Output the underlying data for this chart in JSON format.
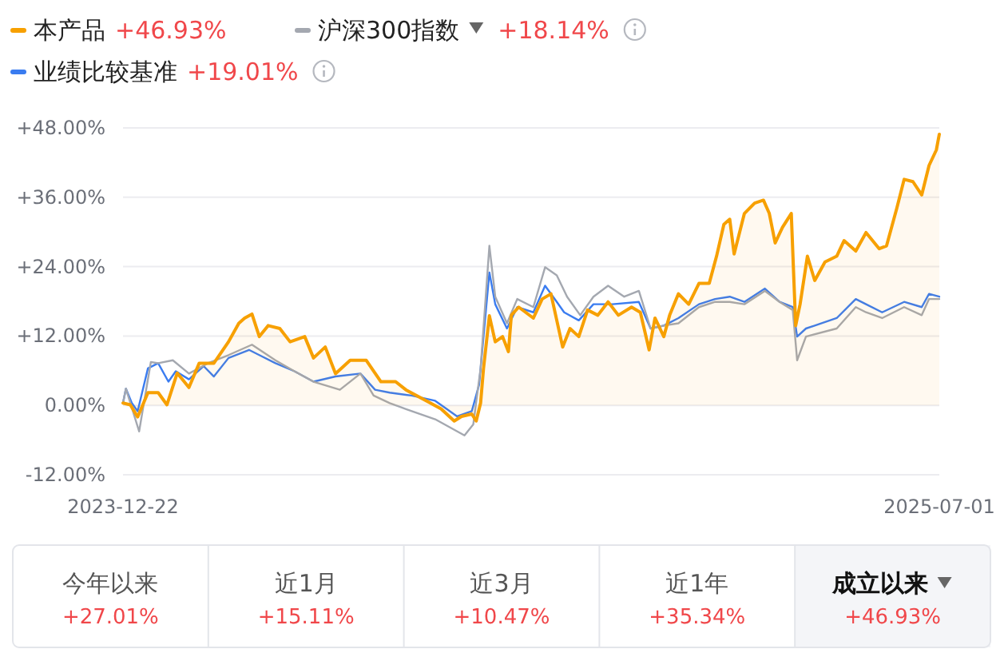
{
  "chart_data": {
    "type": "line",
    "xlim": [
      "2023-12-22",
      "2025-07-01"
    ],
    "xticks": [
      "2023-12-22",
      "2025-07-01"
    ],
    "ylim": [
      -12,
      48
    ],
    "yticks": [
      {
        "value": 48,
        "label": "+48.00%"
      },
      {
        "value": 36,
        "label": "+36.00%"
      },
      {
        "value": 24,
        "label": "+24.00%"
      },
      {
        "value": 12,
        "label": "+12.00%"
      },
      {
        "value": 0,
        "label": "0.00%"
      },
      {
        "value": -12,
        "label": "-12.00%"
      }
    ],
    "grid": "y",
    "legend": "top left",
    "marker": "none",
    "line_style": "solid",
    "annotations": [
      "+46.93%",
      "+18.14%",
      "+19.01%",
      "今年以来",
      "+27.01%",
      "近1月",
      "+15.11%",
      "近3月",
      "+10.47%",
      "近1年",
      "+35.34%",
      "成立以来",
      "+46.93%"
    ],
    "series": [
      {
        "name": "本产品",
        "type": "area",
        "color": "#f7a000",
        "x": [
          "2023-12-22",
          "2023-12-27",
          "2024-01-01",
          "2024-01-08",
          "2024-01-15",
          "2024-01-21",
          "2024-01-28",
          "2024-02-05",
          "2024-02-12",
          "2024-02-22",
          "2024-03-03",
          "2024-03-10",
          "2024-03-14",
          "2024-03-19",
          "2024-03-24",
          "2024-03-30",
          "2024-04-07",
          "2024-04-14",
          "2024-04-24",
          "2024-04-30",
          "2024-05-08",
          "2024-05-15",
          "2024-05-25",
          "2024-06-05",
          "2024-06-15",
          "2024-06-25",
          "2024-07-02",
          "2024-07-16",
          "2024-07-26",
          "2024-08-04",
          "2024-08-09",
          "2024-08-16",
          "2024-08-19",
          "2024-08-22",
          "2024-08-24",
          "2024-08-28",
          "2024-09-01",
          "2024-09-06",
          "2024-09-10",
          "2024-09-12",
          "2024-09-17",
          "2024-09-27",
          "2024-10-03",
          "2024-10-09",
          "2024-10-17",
          "2024-10-22",
          "2024-10-28",
          "2024-11-03",
          "2024-11-10",
          "2024-11-17",
          "2024-11-24",
          "2024-12-03",
          "2024-12-09",
          "2024-12-15",
          "2024-12-19",
          "2024-12-25",
          "2024-12-29",
          "2025-01-04",
          "2025-01-11",
          "2025-01-18",
          "2025-01-25",
          "2025-01-30",
          "2025-02-04",
          "2025-02-08",
          "2025-02-11",
          "2025-02-18",
          "2025-02-25",
          "2025-03-03",
          "2025-03-07",
          "2025-03-11",
          "2025-03-16",
          "2025-03-22",
          "2025-03-25",
          "2025-03-28",
          "2025-04-02",
          "2025-04-07",
          "2025-04-14",
          "2025-04-22",
          "2025-04-27",
          "2025-05-05",
          "2025-05-12",
          "2025-05-21",
          "2025-05-26",
          "2025-06-02",
          "2025-06-07",
          "2025-06-13",
          "2025-06-19",
          "2025-06-24",
          "2025-06-29",
          "2025-07-01"
        ],
        "values": [
          0.4,
          0.1,
          -2.0,
          2.2,
          2.2,
          0.1,
          5.6,
          3.1,
          7.3,
          7.3,
          11.0,
          14.2,
          15.1,
          15.8,
          11.9,
          13.8,
          13.3,
          11.0,
          11.9,
          8.2,
          10.1,
          5.5,
          7.8,
          7.8,
          4.1,
          4.1,
          2.7,
          0.8,
          -0.6,
          -2.7,
          -1.9,
          -1.5,
          -2.7,
          0.4,
          6.4,
          15.5,
          11.0,
          11.9,
          9.3,
          15.6,
          17.0,
          15.1,
          18.4,
          19.3,
          10.1,
          13.3,
          11.9,
          16.5,
          15.6,
          17.9,
          15.6,
          17.0,
          16.1,
          9.6,
          15.1,
          11.9,
          15.6,
          19.3,
          17.5,
          21.1,
          21.1,
          25.8,
          31.3,
          32.2,
          26.2,
          33.2,
          35.0,
          35.5,
          33.2,
          28.1,
          30.8,
          33.2,
          13.8,
          17.5,
          25.8,
          21.6,
          24.8,
          25.8,
          28.5,
          26.7,
          29.9,
          27.1,
          27.6,
          34.1,
          39.1,
          38.7,
          36.4,
          41.5,
          44.2,
          46.9
        ]
      },
      {
        "name": "沪深300指数",
        "color": "#a4a8b0",
        "x": [
          "2023-12-22",
          "2023-12-24",
          "2024-01-02",
          "2024-01-10",
          "2024-01-15",
          "2024-01-25",
          "2024-02-05",
          "2024-02-18",
          "2024-03-03",
          "2024-03-19",
          "2024-04-04",
          "2024-04-17",
          "2024-04-30",
          "2024-05-18",
          "2024-06-01",
          "2024-06-10",
          "2024-06-21",
          "2024-07-06",
          "2024-07-22",
          "2024-08-11",
          "2024-08-17",
          "2024-08-22",
          "2024-08-28",
          "2024-09-01",
          "2024-09-09",
          "2024-09-16",
          "2024-09-27",
          "2024-10-05",
          "2024-10-13",
          "2024-10-20",
          "2024-10-29",
          "2024-11-07",
          "2024-11-17",
          "2024-11-28",
          "2024-12-08",
          "2024-12-16",
          "2024-12-25",
          "2025-01-04",
          "2025-01-18",
          "2025-01-29",
          "2025-02-08",
          "2025-02-18",
          "2025-03-04",
          "2025-03-14",
          "2025-03-23",
          "2025-03-26",
          "2025-04-01",
          "2025-04-22",
          "2025-05-05",
          "2025-05-12",
          "2025-05-23",
          "2025-06-07",
          "2025-06-19",
          "2025-06-24",
          "2025-07-01"
        ],
        "values": [
          0.4,
          2.9,
          -4.5,
          7.5,
          7.3,
          7.8,
          5.5,
          7.3,
          8.7,
          10.5,
          7.8,
          5.9,
          4.1,
          2.7,
          5.5,
          1.7,
          0.4,
          -1.0,
          -2.4,
          -5.2,
          -3.3,
          6.4,
          27.6,
          18.8,
          14.2,
          18.4,
          17.0,
          23.9,
          22.5,
          18.8,
          15.6,
          18.8,
          20.7,
          18.8,
          19.8,
          13.3,
          13.8,
          14.2,
          17.0,
          17.9,
          17.9,
          17.5,
          19.8,
          17.9,
          16.5,
          7.8,
          11.9,
          13.3,
          17.0,
          16.1,
          15.1,
          17.0,
          15.6,
          18.4,
          18.4
        ]
      },
      {
        "name": "业绩比较基准",
        "color": "#3a7cf0",
        "x": [
          "2023-12-22",
          "2023-12-24",
          "2023-12-28",
          "2024-01-01",
          "2024-01-08",
          "2024-01-15",
          "2024-01-22",
          "2024-01-27",
          "2024-02-05",
          "2024-02-15",
          "2024-02-22",
          "2024-03-03",
          "2024-03-17",
          "2024-03-24",
          "2024-04-04",
          "2024-04-17",
          "2024-04-30",
          "2024-05-15",
          "2024-06-01",
          "2024-06-11",
          "2024-06-21",
          "2024-07-06",
          "2024-07-22",
          "2024-08-06",
          "2024-08-16",
          "2024-08-21",
          "2024-08-28",
          "2024-09-01",
          "2024-09-09",
          "2024-09-16",
          "2024-09-27",
          "2024-10-05",
          "2024-10-13",
          "2024-10-18",
          "2024-10-28",
          "2024-11-07",
          "2024-11-20",
          "2024-12-08",
          "2024-12-16",
          "2024-12-25",
          "2025-01-04",
          "2025-01-18",
          "2025-01-29",
          "2025-02-08",
          "2025-02-18",
          "2025-03-04",
          "2025-03-14",
          "2025-03-23",
          "2025-03-26",
          "2025-04-01",
          "2025-04-22",
          "2025-05-05",
          "2025-05-12",
          "2025-05-23",
          "2025-06-07",
          "2025-06-19",
          "2025-06-24",
          "2025-07-01"
        ],
        "values": [
          0.4,
          2.9,
          0.4,
          -1.0,
          6.4,
          7.3,
          4.1,
          5.9,
          4.5,
          6.8,
          5.0,
          8.2,
          9.6,
          8.7,
          7.3,
          5.9,
          4.1,
          5.0,
          5.5,
          2.7,
          2.2,
          1.7,
          0.8,
          -1.9,
          -1.0,
          3.6,
          23.0,
          17.5,
          13.3,
          17.0,
          16.1,
          20.7,
          17.9,
          16.1,
          14.7,
          17.5,
          17.5,
          17.9,
          13.3,
          13.8,
          15.1,
          17.5,
          18.4,
          18.8,
          17.9,
          20.2,
          17.9,
          17.0,
          11.9,
          13.3,
          15.1,
          18.4,
          17.5,
          16.1,
          17.9,
          17.0,
          19.3,
          18.8
        ]
      }
    ]
  }
}
